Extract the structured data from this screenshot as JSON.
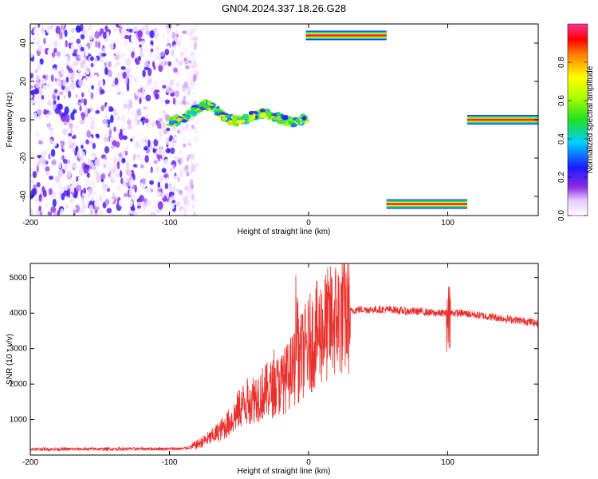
{
  "figure_title": "GN04.2024.337.18.26.G28",
  "chart_data": [
    {
      "type": "heatmap",
      "title": "GN04.2024.337.18.26.G28",
      "xlabel": "Height of straight line (km)",
      "ylabel": "Frequency (Hz)",
      "xlim": [
        -200,
        165
      ],
      "ylim": [
        -50,
        50
      ],
      "x_ticks": [
        -200,
        -100,
        0,
        100
      ],
      "y_ticks": [
        -40,
        -20,
        0,
        20,
        40
      ],
      "colorbar": {
        "label": "Normalized spectral amplitude",
        "range": [
          0,
          1
        ],
        "ticks": [
          0.0,
          0.2,
          0.4,
          0.6,
          0.8
        ]
      },
      "regions": [
        {
          "name": "noise",
          "x": [
            -200,
            -85
          ],
          "y": [
            -50,
            50
          ],
          "amplitude": [
            0.0,
            0.25
          ]
        },
        {
          "name": "carrier-track",
          "x": [
            -100,
            -2
          ],
          "y": [
            -3,
            8
          ],
          "amplitude": [
            0.2,
            0.75
          ]
        },
        {
          "name": "line-plus-44",
          "x": [
            -2,
            56
          ],
          "y": [
            44,
            44
          ],
          "amplitude": 0.95
        },
        {
          "name": "line-minus-44",
          "x": [
            56,
            114
          ],
          "y": [
            -44,
            -44
          ],
          "amplitude": 0.95
        },
        {
          "name": "line-zero",
          "x": [
            114,
            165
          ],
          "y": [
            0,
            0
          ],
          "amplitude": 0.95
        }
      ]
    },
    {
      "type": "line",
      "xlabel": "Height of straight line (km)",
      "ylabel": "SNR (10 * v/v)",
      "xlim": [
        -200,
        165
      ],
      "ylim": [
        0,
        5400
      ],
      "x_ticks": [
        -200,
        -100,
        0,
        100
      ],
      "y_ticks": [
        1000,
        2000,
        3000,
        4000,
        5000
      ],
      "grid": false,
      "color": "#e8302c",
      "series": [
        {
          "x": [
            -200,
            -180,
            -160,
            -140,
            -120,
            -100,
            -90,
            -85,
            -80,
            -75,
            -70,
            -65,
            -60,
            -55,
            -50,
            -45,
            -40,
            -35,
            -30,
            -25,
            -20,
            -15,
            -10,
            -5,
            0,
            5,
            10,
            15,
            20,
            25,
            30,
            35,
            40,
            50,
            60,
            70,
            80,
            90,
            100,
            110,
            120,
            130,
            140,
            150,
            160,
            165
          ],
          "y": [
            170,
            165,
            170,
            170,
            175,
            175,
            180,
            220,
            300,
            400,
            500,
            650,
            800,
            1000,
            1300,
            1500,
            1600,
            1700,
            1800,
            1900,
            2000,
            2200,
            2500,
            2800,
            3100,
            3350,
            3550,
            3700,
            3850,
            3950,
            4050,
            4100,
            4100,
            4100,
            4100,
            4050,
            4050,
            4000,
            4000,
            4000,
            3950,
            3900,
            3850,
            3800,
            3750,
            3700
          ]
        }
      ]
    }
  ]
}
